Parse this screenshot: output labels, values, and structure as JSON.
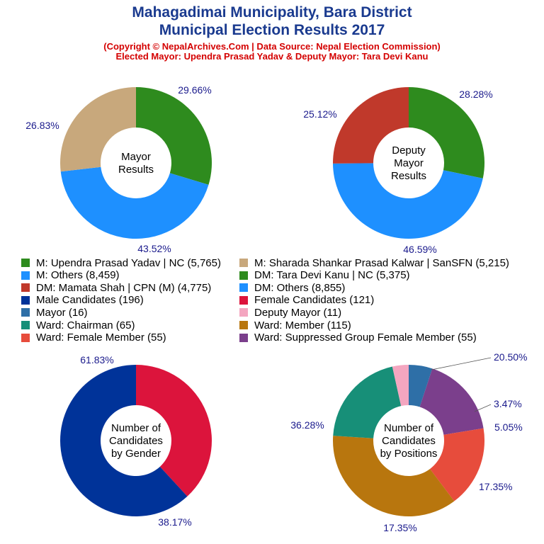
{
  "title": {
    "line1": "Mahagadimai Municipality, Bara District",
    "line2": "Municipal Election Results 2017",
    "line3": "(Copyright © NepalArchives.Com | Data Source: Nepal Election Commission)",
    "line4": "Elected Mayor: Upendra Prasad Yadav & Deputy Mayor: Tara Devi Kanu"
  },
  "legend": [
    {
      "label": "M: Upendra Prasad Yadav | NC (5,765)",
      "color": "#2e8b1e"
    },
    {
      "label": "M: Sharada Shankar Prasad Kalwar | SanSFN (5,215)",
      "color": "#c8a87c"
    },
    {
      "label": "M: Others (8,459)",
      "color": "#1e90ff"
    },
    {
      "label": "DM: Tara Devi Kanu | NC (5,375)",
      "color": "#2e8b1e"
    },
    {
      "label": "DM: Mamata Shah | CPN (M) (4,775)",
      "color": "#c0392b"
    },
    {
      "label": "DM: Others (8,855)",
      "color": "#1e90ff"
    },
    {
      "label": "Male Candidates (196)",
      "color": "#003399"
    },
    {
      "label": "Female Candidates (121)",
      "color": "#dc143c"
    },
    {
      "label": "Mayor (16)",
      "color": "#2e6fa7"
    },
    {
      "label": "Deputy Mayor (11)",
      "color": "#f4a6c0"
    },
    {
      "label": "Ward: Chairman (65)",
      "color": "#178f78"
    },
    {
      "label": "Ward: Member (115)",
      "color": "#b8760e"
    },
    {
      "label": "Ward: Female Member (55)",
      "color": "#e74c3c"
    },
    {
      "label": "Ward: Suppressed Group Female Member (55)",
      "color": "#7b3f8c"
    }
  ],
  "chart_data": [
    {
      "type": "pie",
      "center_label": [
        "Mayor",
        "Results"
      ],
      "slices": [
        {
          "name": "M: Upendra Prasad Yadav | NC",
          "value": 5765,
          "percent": "29.66%",
          "color": "#2e8b1e"
        },
        {
          "name": "M: Others",
          "value": 8459,
          "percent": "43.52%",
          "color": "#1e90ff"
        },
        {
          "name": "M: Sharada Shankar Prasad Kalwar | SanSFN",
          "value": 5215,
          "percent": "26.83%",
          "color": "#c8a87c"
        }
      ]
    },
    {
      "type": "pie",
      "center_label": [
        "Deputy",
        "Mayor",
        "Results"
      ],
      "slices": [
        {
          "name": "DM: Tara Devi Kanu | NC",
          "value": 5375,
          "percent": "28.28%",
          "color": "#2e8b1e"
        },
        {
          "name": "DM: Others",
          "value": 8855,
          "percent": "46.59%",
          "color": "#1e90ff"
        },
        {
          "name": "DM: Mamata Shah | CPN (M)",
          "value": 4775,
          "percent": "25.12%",
          "color": "#c0392b"
        }
      ]
    },
    {
      "type": "pie",
      "center_label": [
        "Number of",
        "Candidates",
        "by Gender"
      ],
      "slices": [
        {
          "name": "Female Candidates",
          "value": 121,
          "percent": "38.17%",
          "color": "#dc143c"
        },
        {
          "name": "Male Candidates",
          "value": 196,
          "percent": "61.83%",
          "color": "#003399"
        }
      ]
    },
    {
      "type": "pie",
      "center_label": [
        "Number of",
        "Candidates",
        "by Positions"
      ],
      "slices": [
        {
          "name": "Mayor",
          "value": 16,
          "percent": "5.05%",
          "color": "#2e6fa7"
        },
        {
          "name": "Ward: Suppressed Group Female Member",
          "value": 55,
          "percent": "17.35%",
          "color": "#7b3f8c"
        },
        {
          "name": "Ward: Female Member",
          "value": 55,
          "percent": "17.35%",
          "color": "#e74c3c"
        },
        {
          "name": "Ward: Member",
          "value": 115,
          "percent": "36.28%",
          "color": "#b8760e"
        },
        {
          "name": "Ward: Chairman",
          "value": 65,
          "percent": "20.50%",
          "color": "#178f78"
        },
        {
          "name": "Deputy Mayor",
          "value": 11,
          "percent": "3.47%",
          "color": "#f4a6c0"
        }
      ]
    }
  ]
}
